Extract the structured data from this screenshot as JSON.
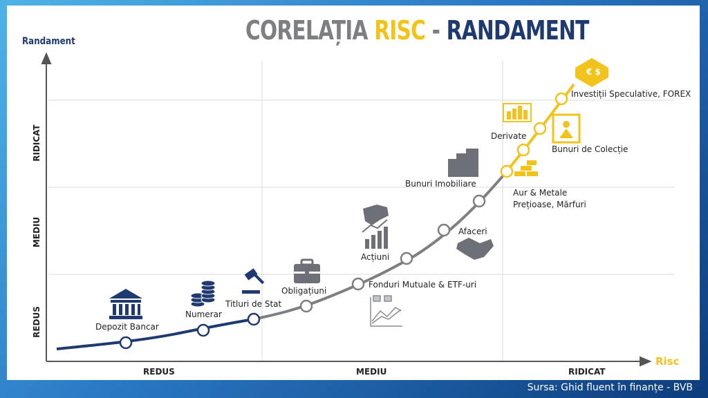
{
  "title": {
    "part1": "CORELAȚIA ",
    "part2": "RISC",
    "part3": " - ",
    "part4": "RANDAMENT"
  },
  "axes": {
    "y_label": "Randament",
    "x_label": "Risc",
    "x_ticks": [
      "REDUS",
      "MEDIU",
      "RIDICAT"
    ],
    "y_ticks": [
      "REDUS",
      "MEDIU",
      "RIDICAT"
    ]
  },
  "items": {
    "depozit": "Depozit Bancar",
    "numerar": "Numerar",
    "titluri": "Titluri de Stat",
    "obligatiuni": "Obligațiuni",
    "fonduri": "Fonduri Mutuale & ETF-uri",
    "actiuni": "Acțiuni",
    "afaceri": "Afaceri",
    "imobiliare": "Bunuri Imobiliare",
    "aur_line1": "Aur & Metale",
    "aur_line2": "Prețioase, Mărfuri",
    "derivate": "Derivate",
    "colectie": "Bunuri de Colecție",
    "speculative": "Investiții Speculative, FOREX"
  },
  "source": "Sursa: Ghid fluent în finanțe - BVB",
  "colors": {
    "navy": "#1f3a6e",
    "grey": "#7d7f83",
    "yellow": "#f2c31b"
  }
}
